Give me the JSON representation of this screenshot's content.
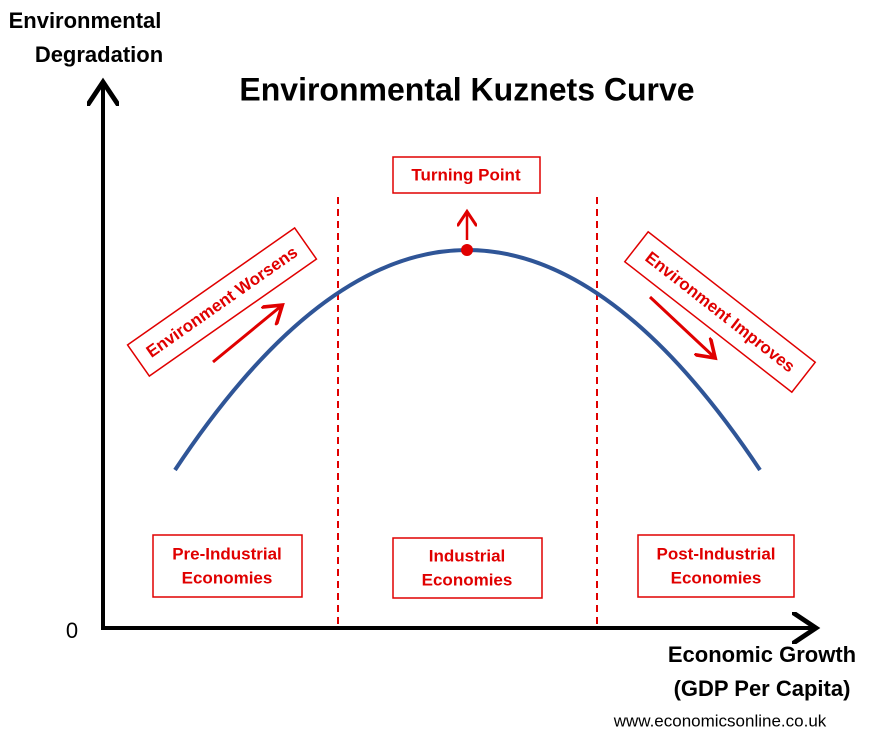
{
  "title": "Environmental Kuznets Curve",
  "y_axis_label": [
    "Environmental",
    "Degradation"
  ],
  "x_axis_label": [
    "Economic Growth",
    "(GDP Per Capita)"
  ],
  "origin_label": "0",
  "annotations": {
    "turning_point": "Turning Point",
    "worsens": "Environment Worsens",
    "improves": "Environment Improves"
  },
  "stages": [
    [
      "Pre-Industrial",
      "Economies"
    ],
    [
      "Industrial",
      "Economies"
    ],
    [
      "Post-Industrial",
      "Economies"
    ]
  ],
  "source": "www.economicsonline.co.uk"
}
